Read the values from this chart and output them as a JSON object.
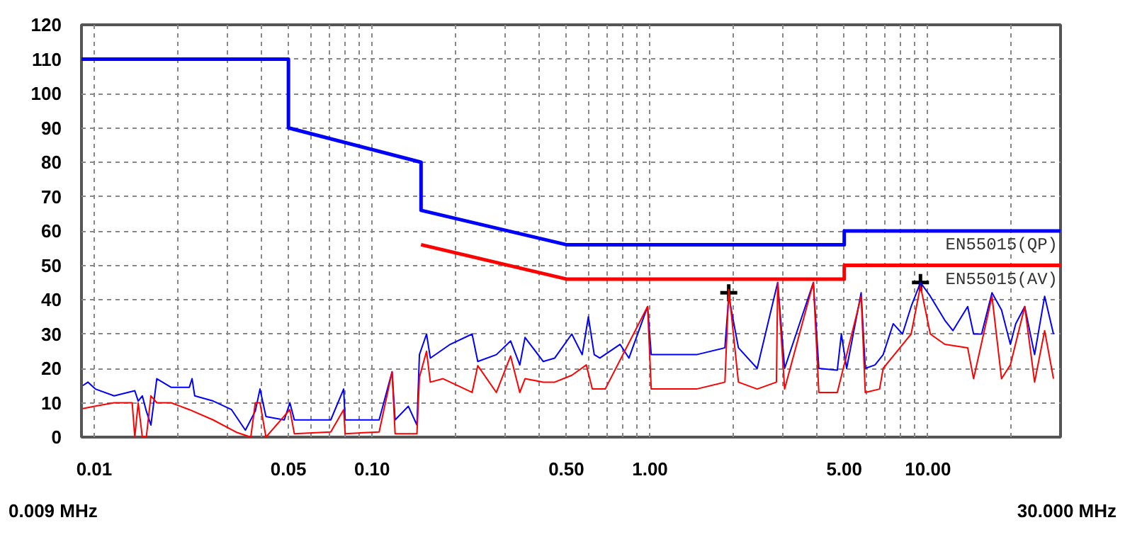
{
  "chart_data": {
    "type": "line",
    "log": "x",
    "grid": true,
    "xlim": [
      0.009,
      30
    ],
    "ylim": [
      0,
      120
    ],
    "xticks": [
      {
        "value": 0.01,
        "label": "0.01"
      },
      {
        "value": 0.02,
        "label": null
      },
      {
        "value": 0.03,
        "label": null
      },
      {
        "value": 0.04,
        "label": null
      },
      {
        "value": 0.05,
        "label": "0.05"
      },
      {
        "value": 0.06,
        "label": null
      },
      {
        "value": 0.07,
        "label": null
      },
      {
        "value": 0.08,
        "label": null
      },
      {
        "value": 0.09,
        "label": null
      },
      {
        "value": 0.1,
        "label": "0.10"
      },
      {
        "value": 0.2,
        "label": null
      },
      {
        "value": 0.3,
        "label": null
      },
      {
        "value": 0.4,
        "label": null
      },
      {
        "value": 0.5,
        "label": "0.50"
      },
      {
        "value": 0.6,
        "label": null
      },
      {
        "value": 0.7,
        "label": null
      },
      {
        "value": 0.8,
        "label": null
      },
      {
        "value": 0.9,
        "label": null
      },
      {
        "value": 1,
        "label": "1.00"
      },
      {
        "value": 2,
        "label": null
      },
      {
        "value": 3,
        "label": null
      },
      {
        "value": 4,
        "label": null
      },
      {
        "value": 5,
        "label": "5.00"
      },
      {
        "value": 6,
        "label": null
      },
      {
        "value": 7,
        "label": null
      },
      {
        "value": 8,
        "label": null
      },
      {
        "value": 9,
        "label": null
      },
      {
        "value": 10,
        "label": "10.00"
      },
      {
        "value": 20,
        "label": null
      }
    ],
    "yticks": [
      0,
      10,
      20,
      30,
      40,
      50,
      60,
      70,
      80,
      90,
      100,
      110,
      120
    ],
    "annotations": [
      "0.009 MHz",
      "30.000 MHz"
    ],
    "series": [
      {
        "name": "EN55015(QP)",
        "color": "#0000ff",
        "x": [
          0.009,
          0.05,
          0.05,
          0.15,
          0.15,
          0.5,
          5,
          5,
          30
        ],
        "values": [
          110,
          110,
          90,
          80,
          66,
          56,
          56,
          60,
          60
        ]
      },
      {
        "name": "EN55015(AV)",
        "color": "#ff0000",
        "x": [
          0.15,
          0.5,
          5,
          5,
          30
        ],
        "values": [
          56,
          46,
          46,
          50,
          50
        ]
      },
      {
        "color": "#0000ff",
        "x": [
          0.0091,
          0.0095,
          0.0101,
          0.0118,
          0.014,
          0.0144,
          0.0149,
          0.0154,
          0.016,
          0.0168,
          0.0189,
          0.022,
          0.0225,
          0.023,
          0.0268,
          0.0312,
          0.035,
          0.038,
          0.0395,
          0.0415,
          0.0483,
          0.0506,
          0.0525,
          0.071,
          0.079,
          0.08,
          0.106,
          0.118,
          0.121,
          0.135,
          0.145,
          0.148,
          0.157,
          0.162,
          0.191,
          0.229,
          0.24,
          0.28,
          0.315,
          0.34,
          0.355,
          0.413,
          0.454,
          0.523,
          0.57,
          0.6,
          0.63,
          0.66,
          0.78,
          0.84,
          0.98,
          1.01,
          1.47,
          1.86,
          1.92,
          2.08,
          2.43,
          2.88,
          3.05,
          3.87,
          4.05,
          4.72,
          4.88,
          5.1,
          5.75,
          5.95,
          6.45,
          6.9,
          7.5,
          8.1,
          8.7,
          9.4,
          10.2,
          11.5,
          12.3,
          13.9,
          14.6,
          15.6,
          17.0,
          18.4,
          19.8,
          20.7,
          22.3,
          24.2,
          26.3,
          28.3
        ],
        "values": [
          15,
          16,
          14,
          12,
          13.5,
          10.5,
          12,
          7.6,
          3.5,
          17,
          14.5,
          14.5,
          17,
          12,
          10.5,
          8,
          2,
          7.6,
          14,
          6,
          5,
          10,
          5,
          5,
          14,
          5,
          5,
          19,
          5,
          9,
          3.5,
          24,
          30,
          23,
          27,
          30,
          22,
          24,
          28,
          21,
          29,
          22,
          23,
          30,
          24,
          35,
          24,
          23,
          27,
          23,
          38,
          24,
          24,
          26,
          41,
          26,
          20,
          45,
          20,
          45,
          20,
          19.5,
          30,
          20,
          42,
          20,
          21,
          24,
          33,
          30,
          38,
          45,
          41,
          34,
          31,
          38,
          30,
          30,
          42,
          37,
          27,
          33,
          38,
          24,
          41,
          30
        ]
      },
      {
        "color": "#ff0000",
        "x": [
          0.0091,
          0.0101,
          0.0118,
          0.0137,
          0.014,
          0.0144,
          0.0149,
          0.0154,
          0.016,
          0.0168,
          0.0189,
          0.022,
          0.0268,
          0.0325,
          0.0366,
          0.038,
          0.0395,
          0.0415,
          0.0506,
          0.0525,
          0.071,
          0.079,
          0.08,
          0.106,
          0.118,
          0.121,
          0.135,
          0.145,
          0.148,
          0.157,
          0.162,
          0.18,
          0.229,
          0.24,
          0.28,
          0.315,
          0.34,
          0.355,
          0.413,
          0.454,
          0.523,
          0.59,
          0.62,
          0.69,
          0.98,
          1.01,
          1.47,
          1.86,
          1.92,
          2.08,
          2.43,
          2.85,
          2.88,
          3.05,
          3.87,
          4.05,
          4.72,
          5.75,
          5.95,
          6.7,
          6.9,
          8.7,
          9.4,
          10.2,
          11.5,
          13.9,
          14.6,
          17.0,
          18.4,
          19.8,
          22.3,
          24.2,
          26.3,
          28.3
        ],
        "values": [
          8.3,
          9,
          10,
          10,
          0,
          10,
          0,
          0,
          12,
          10,
          10,
          8,
          5,
          1.4,
          0,
          10,
          10,
          0,
          8,
          1,
          1.5,
          8,
          1,
          1.5,
          19,
          1,
          1,
          1,
          17.4,
          25,
          16,
          17,
          13,
          20.8,
          13,
          23.6,
          13,
          17,
          16,
          16,
          18,
          21,
          14,
          14,
          38,
          14,
          14,
          16,
          43,
          16,
          14,
          16,
          45,
          14,
          45,
          13,
          13,
          41,
          13,
          14,
          20,
          30,
          44,
          30,
          27,
          26,
          17,
          41,
          17,
          21,
          38,
          16,
          31,
          17
        ]
      },
      {
        "type": "scatter",
        "marker": "cross",
        "color": "#000000",
        "x": [
          1.92,
          9.4
        ],
        "values": [
          42,
          45
        ]
      }
    ]
  }
}
